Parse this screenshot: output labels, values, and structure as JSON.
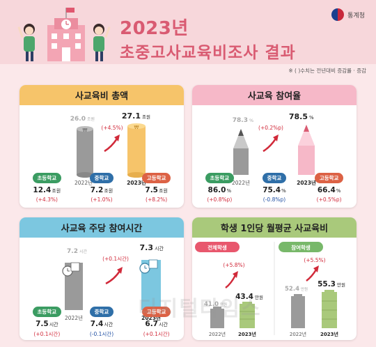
{
  "header": {
    "title_year": "2023년",
    "title_main": "초중고사교육비조사 결과",
    "org": "통계청",
    "note": "※ (    )수치는 전년대비 증감률 · 증감"
  },
  "colors": {
    "background": "#fbe8ea",
    "header_band": "#f7d7db",
    "title": "#d95b72",
    "yellow": "#f6c46a",
    "pink": "#f6b8c8",
    "blue": "#7cc7e0",
    "green": "#a9c97b",
    "gray": "#9a9a9a",
    "increase": "#d12a3a",
    "decrease": "#1f4fa3"
  },
  "panels": {
    "expenditure": {
      "title": "사교육비 총액",
      "prev": {
        "year": "2022년",
        "value": "26.0",
        "unit": "조원"
      },
      "curr": {
        "year": "2023년",
        "value": "27.1",
        "unit": "조원"
      },
      "change": "(+4.5%)",
      "icons": [
        "coin-stack-icon-gray",
        "coin-stack-icon-yellow"
      ],
      "subs": [
        {
          "label": "초등학교",
          "value": "12.4",
          "unit": "조원",
          "change": "(+4.3%)"
        },
        {
          "label": "중학교",
          "value": "7.2",
          "unit": "조원",
          "change": "(+1.0%)"
        },
        {
          "label": "고등학교",
          "value": "7.5",
          "unit": "조원",
          "change": "(+8.2%)"
        }
      ]
    },
    "participation": {
      "title": "사교육 참여율",
      "prev": {
        "year": "2022년",
        "value": "78.3",
        "unit": "%"
      },
      "curr": {
        "year": "2023년",
        "value": "78.5",
        "unit": "%"
      },
      "change": "(+0.2%p)",
      "subs": [
        {
          "label": "초등학교",
          "value": "86.0",
          "unit": "%",
          "change": "(+0.8%p)"
        },
        {
          "label": "중학교",
          "value": "75.4",
          "unit": "%",
          "change": "(-0.8%p)"
        },
        {
          "label": "고등학교",
          "value": "66.4",
          "unit": "%",
          "change": "(+0.5%p)"
        }
      ]
    },
    "hours": {
      "title": "사교육 주당 참여시간",
      "prev": {
        "year": "2022년",
        "value": "7.2",
        "unit": "시간"
      },
      "curr": {
        "year": "2023년",
        "value": "7.3",
        "unit": "시간"
      },
      "change": "(+0.1시간)",
      "subs": [
        {
          "label": "초등학교",
          "value": "7.5",
          "unit": "시간",
          "change": "(+0.1시간)"
        },
        {
          "label": "중학교",
          "value": "7.4",
          "unit": "시간",
          "change": "(-0.1시간)"
        },
        {
          "label": "고등학교",
          "value": "6.7",
          "unit": "시간",
          "change": "(+0.1시간)"
        }
      ]
    },
    "per_student": {
      "title": "학생 1인당 월평균 사교육비",
      "all": {
        "label": "전체학생",
        "prev": {
          "year": "2022년",
          "value": "41.0",
          "unit": "만원"
        },
        "curr": {
          "year": "2023년",
          "value": "43.4",
          "unit": "만원"
        },
        "change": "(+5.8%)"
      },
      "participants": {
        "label": "참여학생",
        "prev": {
          "year": "2022년",
          "value": "52.4",
          "unit": "만원"
        },
        "curr": {
          "year": "2023년",
          "value": "55.3",
          "unit": "만원"
        },
        "change": "(+5.5%)"
      }
    }
  },
  "watermark": "디지털타임스"
}
